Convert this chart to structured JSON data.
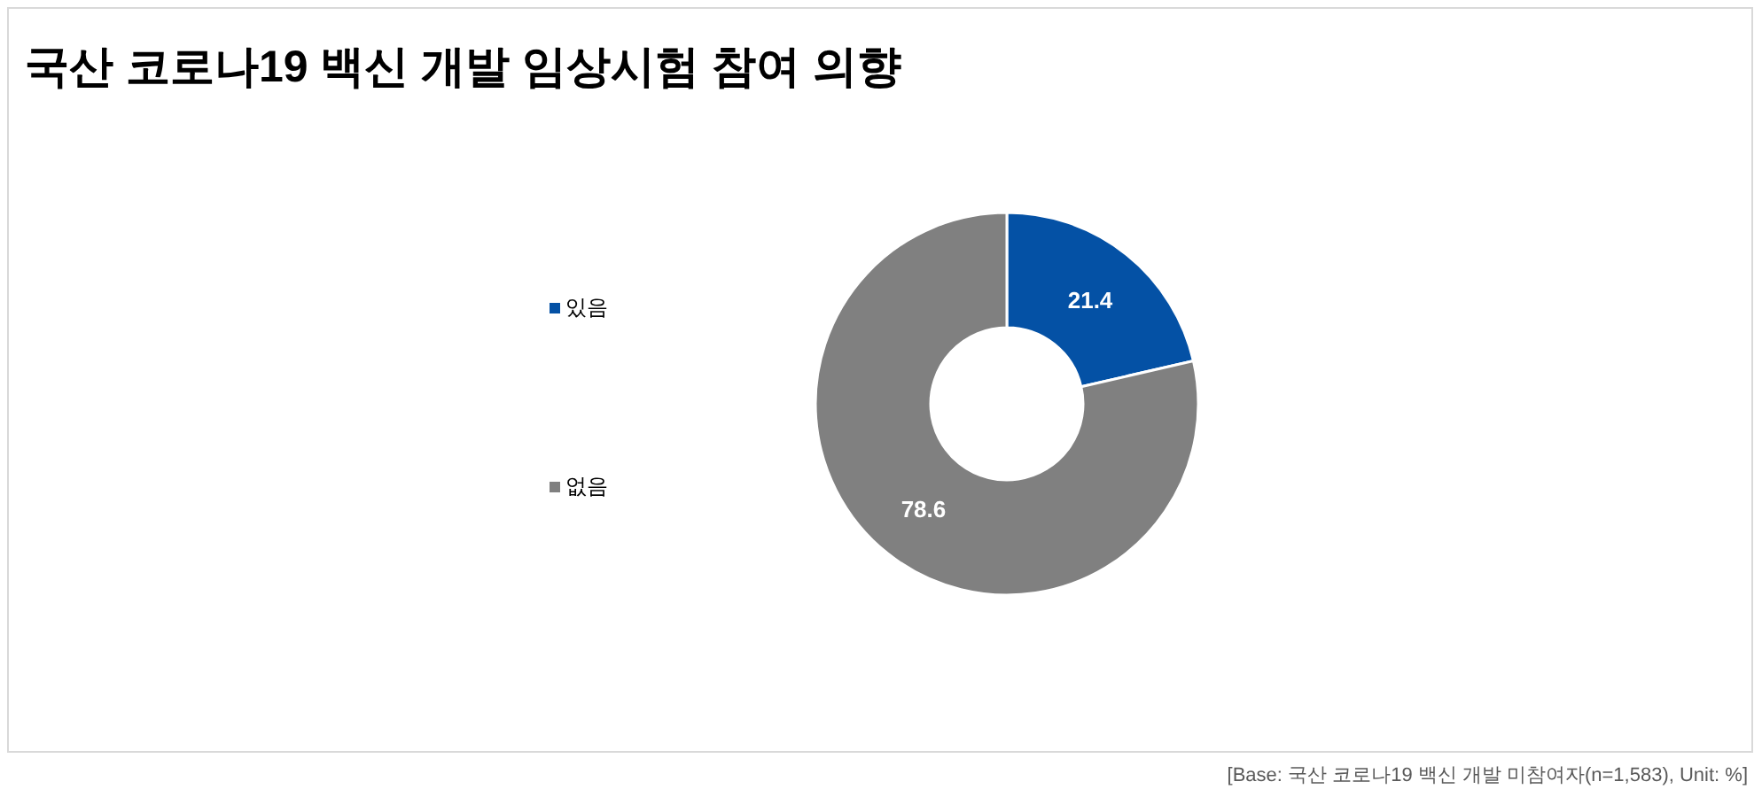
{
  "chart_data": {
    "type": "donut",
    "title": "국산 코로나19 백신 개발 임상시험 참여 의향",
    "categories": [
      "있음",
      "없음"
    ],
    "values": [
      21.4,
      78.6
    ],
    "colors": [
      "#0451a5",
      "#808080"
    ],
    "data_labels": true,
    "legend": "left",
    "annotations": [
      "[Base: 국산 코로나19 백신 개발 미참여자(n=1,583), Unit: %]"
    ]
  }
}
